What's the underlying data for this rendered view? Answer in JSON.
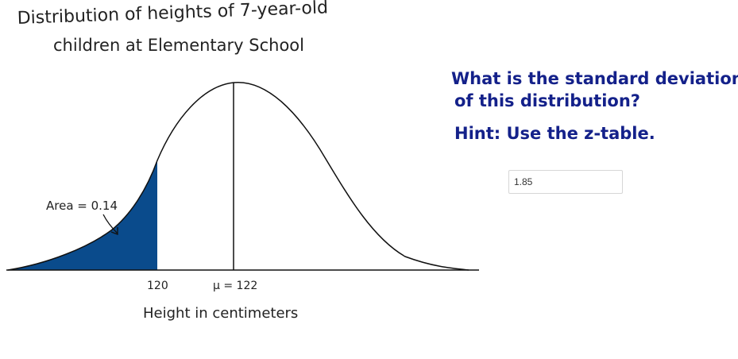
{
  "figure": {
    "title_line1": "Distribution of heights of 7-year-old",
    "title_line2": "children at Elementary School",
    "area_label": "Area = 0.14",
    "tick_120": "120",
    "tick_mu": "μ = 122",
    "xlabel": "Height in centimeters"
  },
  "question": {
    "line1": "What is the standard deviation",
    "line2": "of this distribution?",
    "hint": "Hint: Use the z-table."
  },
  "answer": {
    "value": "1.85"
  },
  "colors": {
    "shade": "#0a4b8c",
    "question_text": "#14218a"
  }
}
